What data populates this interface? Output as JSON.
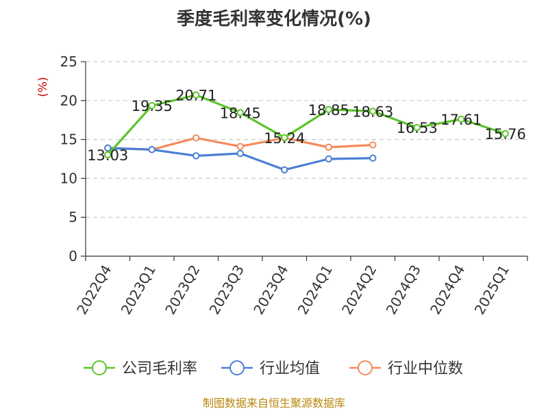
{
  "chart_data": {
    "type": "line",
    "title": "季度毛利率变化情况(%)",
    "ylabel": "(%)",
    "ylim": [
      0,
      25
    ],
    "yticks": [
      0,
      5,
      10,
      15,
      20,
      25
    ],
    "grid": true,
    "legend_position": "bottom",
    "categories": [
      "2022Q4",
      "2023Q1",
      "2023Q2",
      "2023Q3",
      "2023Q4",
      "2024Q1",
      "2024Q2",
      "2024Q3",
      "2024Q4",
      "2025Q1"
    ],
    "series": [
      {
        "name": "公司毛利率",
        "color": "#5bc42a",
        "values": [
          13.03,
          19.35,
          20.71,
          18.45,
          15.24,
          18.85,
          18.63,
          16.53,
          17.61,
          15.76
        ],
        "labels": [
          "13.03",
          "19.35",
          "20.71",
          "18.45",
          "15.24",
          "18.85",
          "18.63",
          "16.53",
          "17.61",
          "15.76"
        ]
      },
      {
        "name": "行业均值",
        "color": "#4a7fd6",
        "values": [
          13.9,
          13.7,
          12.9,
          13.2,
          11.1,
          12.5,
          12.6,
          null,
          null,
          null
        ]
      },
      {
        "name": "行业中位数",
        "color": "#f58a5b",
        "values": [
          13.9,
          13.7,
          15.2,
          14.1,
          15.2,
          14.0,
          14.3,
          null,
          null,
          null
        ]
      }
    ],
    "source": "制图数据来自恒生聚源数据库"
  }
}
